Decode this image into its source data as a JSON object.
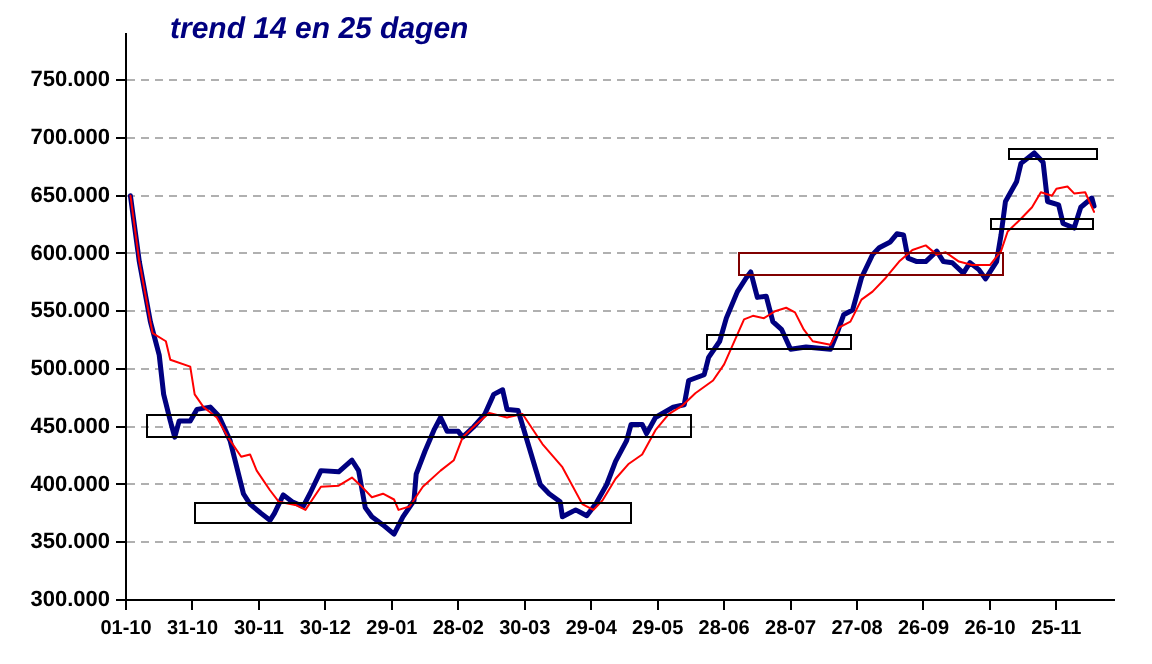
{
  "chart_data": {
    "type": "line",
    "title": "trend 14 en 25 dagen",
    "xlim": [
      "2006-10-01",
      "2007-12-21"
    ],
    "ylim": [
      300000,
      790000
    ],
    "xticks": [
      {
        "value": "2006-10-01",
        "label": "01-10"
      },
      {
        "value": "2006-10-31",
        "label": "31-10"
      },
      {
        "value": "2006-11-30",
        "label": "30-11"
      },
      {
        "value": "2006-12-30",
        "label": "30-12"
      },
      {
        "value": "2007-01-29",
        "label": "29-01"
      },
      {
        "value": "2007-02-28",
        "label": "28-02"
      },
      {
        "value": "2007-03-30",
        "label": "30-03"
      },
      {
        "value": "2007-04-29",
        "label": "29-04"
      },
      {
        "value": "2007-05-29",
        "label": "29-05"
      },
      {
        "value": "2007-06-28",
        "label": "28-06"
      },
      {
        "value": "2007-07-28",
        "label": "28-07"
      },
      {
        "value": "2007-08-27",
        "label": "27-08"
      },
      {
        "value": "2007-09-26",
        "label": "26-09"
      },
      {
        "value": "2007-10-26",
        "label": "26-10"
      },
      {
        "value": "2007-11-25",
        "label": "25-11"
      }
    ],
    "yticks": [
      {
        "value": 300000,
        "label": "300.000"
      },
      {
        "value": 350000,
        "label": "350.000"
      },
      {
        "value": 400000,
        "label": "400.000"
      },
      {
        "value": 450000,
        "label": "450.000"
      },
      {
        "value": 500000,
        "label": "500.000"
      },
      {
        "value": 550000,
        "label": "550.000"
      },
      {
        "value": 600000,
        "label": "600.000"
      },
      {
        "value": 650000,
        "label": "650.000"
      },
      {
        "value": 700000,
        "label": "700.000"
      },
      {
        "value": 750000,
        "label": "750.000"
      }
    ],
    "grid": "y",
    "legend": false,
    "marker": "none",
    "line_style": "solid",
    "series": [
      {
        "color": "#ff0000",
        "x": [
          "2006-10-03",
          "2006-10-07",
          "2006-10-12",
          "2006-10-13",
          "2006-10-19",
          "2006-10-21",
          "2006-10-30",
          "2006-11-01",
          "2006-11-05",
          "2006-11-11",
          "2006-11-16",
          "2006-11-22",
          "2006-11-26",
          "2006-11-29",
          "2006-12-05",
          "2006-12-09",
          "2006-12-17",
          "2006-12-21",
          "2006-12-28",
          "2007-01-05",
          "2007-01-11",
          "2007-01-15",
          "2007-01-20",
          "2007-01-25",
          "2007-01-30",
          "2007-02-01",
          "2007-02-06",
          "2007-02-12",
          "2007-02-20",
          "2007-02-26",
          "2007-03-02",
          "2007-03-08",
          "2007-03-14",
          "2007-03-22",
          "2007-03-29",
          "2007-04-07",
          "2007-04-16",
          "2007-04-25",
          "2007-04-30",
          "2007-05-04",
          "2007-05-10",
          "2007-05-16",
          "2007-05-22",
          "2007-05-28",
          "2007-06-03",
          "2007-06-09",
          "2007-06-15",
          "2007-06-23",
          "2007-06-28",
          "2007-07-04",
          "2007-07-07",
          "2007-07-11",
          "2007-07-16",
          "2007-07-21",
          "2007-07-26",
          "2007-07-30",
          "2007-08-03",
          "2007-08-07",
          "2007-08-15",
          "2007-08-19",
          "2007-08-24",
          "2007-08-29",
          "2007-09-03",
          "2007-09-09",
          "2007-09-15",
          "2007-09-21",
          "2007-09-27",
          "2007-10-02",
          "2007-10-06",
          "2007-10-12",
          "2007-10-18",
          "2007-10-26",
          "2007-10-31",
          "2007-11-03",
          "2007-11-09",
          "2007-11-14",
          "2007-11-18",
          "2007-11-23",
          "2007-11-25",
          "2007-11-30",
          "2007-12-03",
          "2007-12-08",
          "2007-12-12"
        ],
        "values": [
          650000,
          593000,
          541000,
          531000,
          524000,
          508000,
          502000,
          478000,
          467000,
          458000,
          441000,
          424000,
          426000,
          412000,
          395000,
          385000,
          382000,
          378000,
          398000,
          399000,
          406000,
          399000,
          389000,
          392000,
          387000,
          378000,
          381000,
          398000,
          412000,
          421000,
          441000,
          452000,
          462000,
          458000,
          461000,
          435000,
          415000,
          383000,
          378000,
          386000,
          405000,
          418000,
          426000,
          447000,
          461000,
          468000,
          479000,
          490000,
          504000,
          530000,
          543000,
          546000,
          544000,
          550000,
          553000,
          549000,
          534000,
          524000,
          521000,
          536000,
          541000,
          560000,
          567000,
          579000,
          593000,
          603000,
          607000,
          599000,
          601000,
          593000,
          590000,
          590000,
          602000,
          619000,
          630000,
          640000,
          653000,
          650000,
          656000,
          658000,
          652000,
          653000,
          636000
        ]
      },
      {
        "color": "#000080",
        "x": [
          "2006-10-03",
          "2006-10-07",
          "2006-10-12",
          "2006-10-16",
          "2006-10-18",
          "2006-10-21",
          "2006-10-23",
          "2006-10-25",
          "2006-10-30",
          "2006-11-02",
          "2006-11-08",
          "2006-11-12",
          "2006-11-17",
          "2006-11-20",
          "2006-11-23",
          "2006-11-26",
          "2006-12-01",
          "2006-12-05",
          "2006-12-07",
          "2006-12-11",
          "2006-12-15",
          "2006-12-20",
          "2006-12-23",
          "2006-12-28",
          "2007-01-05",
          "2007-01-11",
          "2007-01-14",
          "2007-01-17",
          "2007-01-20",
          "2007-01-25",
          "2007-01-30",
          "2007-02-03",
          "2007-02-08",
          "2007-02-09",
          "2007-02-13",
          "2007-02-17",
          "2007-02-20",
          "2007-02-23",
          "2007-02-28",
          "2007-03-02",
          "2007-03-07",
          "2007-03-12",
          "2007-03-16",
          "2007-03-20",
          "2007-03-22",
          "2007-03-27",
          "2007-04-01",
          "2007-04-06",
          "2007-04-10",
          "2007-04-15",
          "2007-04-16",
          "2007-04-22",
          "2007-04-27",
          "2007-05-01",
          "2007-05-06",
          "2007-05-10",
          "2007-05-15",
          "2007-05-17",
          "2007-05-22",
          "2007-05-24",
          "2007-05-28",
          "2007-06-05",
          "2007-06-10",
          "2007-06-12",
          "2007-06-19",
          "2007-06-21",
          "2007-06-26",
          "2007-06-29",
          "2007-07-04",
          "2007-07-08",
          "2007-07-10",
          "2007-07-13",
          "2007-07-17",
          "2007-07-20",
          "2007-07-24",
          "2007-07-28",
          "2007-08-04",
          "2007-08-10",
          "2007-08-15",
          "2007-08-18",
          "2007-08-21",
          "2007-08-25",
          "2007-08-29",
          "2007-09-03",
          "2007-09-06",
          "2007-09-11",
          "2007-09-14",
          "2007-09-17",
          "2007-09-19",
          "2007-09-23",
          "2007-09-27",
          "2007-10-02",
          "2007-10-05",
          "2007-10-09",
          "2007-10-14",
          "2007-10-17",
          "2007-10-21",
          "2007-10-24",
          "2007-10-29",
          "2007-10-31",
          "2007-11-02",
          "2007-11-07",
          "2007-11-09",
          "2007-11-15",
          "2007-11-19",
          "2007-11-21",
          "2007-11-26",
          "2007-11-28",
          "2007-12-03",
          "2007-12-06",
          "2007-12-11",
          "2007-12-12"
        ],
        "values": [
          650000,
          593000,
          541000,
          512000,
          478000,
          455000,
          441000,
          455000,
          455000,
          465000,
          467000,
          459000,
          438000,
          415000,
          392000,
          383000,
          375000,
          369000,
          375000,
          391000,
          385000,
          381000,
          392000,
          412000,
          411000,
          421000,
          412000,
          380000,
          372000,
          365000,
          357000,
          372000,
          386000,
          409000,
          429000,
          447000,
          458000,
          446000,
          446000,
          441000,
          450000,
          461000,
          478000,
          482000,
          465000,
          464000,
          432000,
          400000,
          392000,
          385000,
          372000,
          378000,
          373000,
          383000,
          400000,
          420000,
          438000,
          452000,
          452000,
          444000,
          458000,
          467000,
          469000,
          490000,
          495000,
          510000,
          524000,
          544000,
          567000,
          579000,
          584000,
          562000,
          563000,
          541000,
          534000,
          517000,
          519000,
          518000,
          517000,
          531000,
          547000,
          551000,
          579000,
          599000,
          605000,
          610000,
          617000,
          616000,
          596000,
          593000,
          593000,
          602000,
          593000,
          592000,
          583000,
          592000,
          586000,
          578000,
          593000,
          616000,
          645000,
          662000,
          678000,
          687000,
          679000,
          645000,
          642000,
          626000,
          622000,
          640000,
          648000,
          641000
        ]
      }
    ]
  }
}
